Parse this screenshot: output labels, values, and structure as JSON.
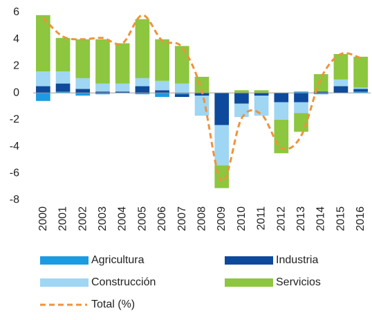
{
  "chart_data": {
    "type": "bar",
    "stacked": true,
    "categories": [
      "2000",
      "2001",
      "2002",
      "2003",
      "2004",
      "2005",
      "2006",
      "2007",
      "2008",
      "2009",
      "2010",
      "2011",
      "2012",
      "2013",
      "2014",
      "2015",
      "2016"
    ],
    "series": [
      {
        "name": "Agricultura",
        "color": "#1c9be0",
        "values": [
          -0.6,
          0.1,
          -0.2,
          -0.1,
          0,
          -0.1,
          -0.3,
          -0.1,
          0,
          0,
          0,
          0,
          0,
          0.1,
          -0.1,
          0,
          0.1
        ]
      },
      {
        "name": "Industria",
        "color": "#0d4a9c",
        "values": [
          0.5,
          0.6,
          0.3,
          0.1,
          0.1,
          0.5,
          0.2,
          -0.2,
          -0.2,
          -2.4,
          -0.8,
          -0.2,
          -0.7,
          -0.7,
          0.1,
          0.5,
          0.2
        ]
      },
      {
        "name": "Construcción",
        "color": "#9fd6f3",
        "values": [
          1.1,
          0.9,
          0.8,
          0.6,
          0.6,
          0.6,
          0.7,
          0.7,
          -1.5,
          -3.0,
          -1.0,
          -1.5,
          -1.3,
          -0.8,
          0,
          0.5,
          0.1
        ]
      },
      {
        "name": "Servicios",
        "color": "#8dc63f",
        "values": [
          4.2,
          2.5,
          2.9,
          3.3,
          3.0,
          4.4,
          3.1,
          2.8,
          1.2,
          -1.7,
          0.2,
          0.2,
          -2.5,
          -1.4,
          1.3,
          1.9,
          2.3
        ]
      },
      {
        "name": "Total (%)",
        "type": "line",
        "dashed": true,
        "color": "#f0923a",
        "values": [
          5.6,
          4.2,
          4.0,
          4.1,
          3.7,
          5.8,
          3.9,
          3.4,
          0.1,
          -6.6,
          -1.9,
          -1.6,
          -4.1,
          -3.2,
          1.1,
          2.9,
          2.6
        ]
      }
    ],
    "ylim": [
      -8,
      6
    ],
    "yticks": [
      -8,
      -6,
      -4,
      -2,
      0,
      2,
      4,
      6
    ],
    "grid": false
  }
}
